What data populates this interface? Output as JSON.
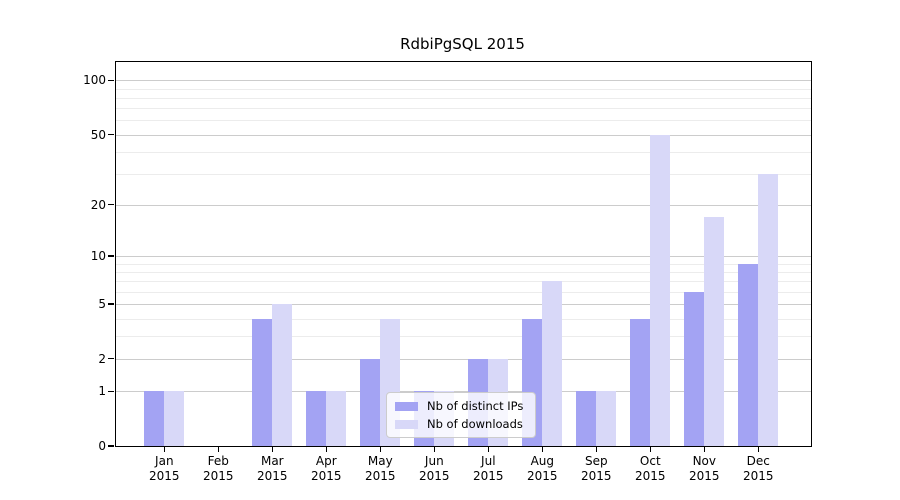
{
  "title": "RdbiPgSQL 2015",
  "colors": {
    "bar_ips": "#a3a3f3",
    "bar_downloads": "#d8d8f8",
    "grid_major": "#cccccc",
    "grid_minor": "#ececec",
    "axis": "#000000"
  },
  "legend": {
    "items": [
      {
        "label": "Nb of distinct IPs",
        "series": "ips"
      },
      {
        "label": "Nb of downloads",
        "series": "downloads"
      }
    ]
  },
  "chart_data": {
    "type": "bar",
    "title": "RdbiPgSQL 2015",
    "xlabel": "",
    "ylabel": "",
    "year": "2015",
    "categories": [
      "Jan",
      "Feb",
      "Mar",
      "Apr",
      "May",
      "Jun",
      "Jul",
      "Aug",
      "Sep",
      "Oct",
      "Nov",
      "Dec"
    ],
    "series": [
      {
        "name": "Nb of distinct IPs",
        "color_key": "bar_ips",
        "values": [
          1,
          0,
          4,
          1,
          2,
          1,
          2,
          4,
          1,
          4,
          6,
          9
        ]
      },
      {
        "name": "Nb of downloads",
        "color_key": "bar_downloads",
        "values": [
          1,
          0,
          5,
          1,
          4,
          1,
          2,
          7,
          1,
          50,
          17,
          30
        ]
      }
    ],
    "yticks": [
      0,
      1,
      2,
      5,
      10,
      20,
      50,
      100
    ],
    "ytick_labels": [
      "0",
      "1",
      "2",
      "5",
      "10",
      "20",
      "50",
      "100"
    ],
    "minor_gridline_values": [
      3,
      4,
      6,
      7,
      8,
      9,
      30,
      40,
      60,
      70,
      80,
      90
    ],
    "scale": "log10(1+y)",
    "ylim": [
      0,
      126
    ],
    "grid": true,
    "legend_position": "inside-bottom-center"
  }
}
